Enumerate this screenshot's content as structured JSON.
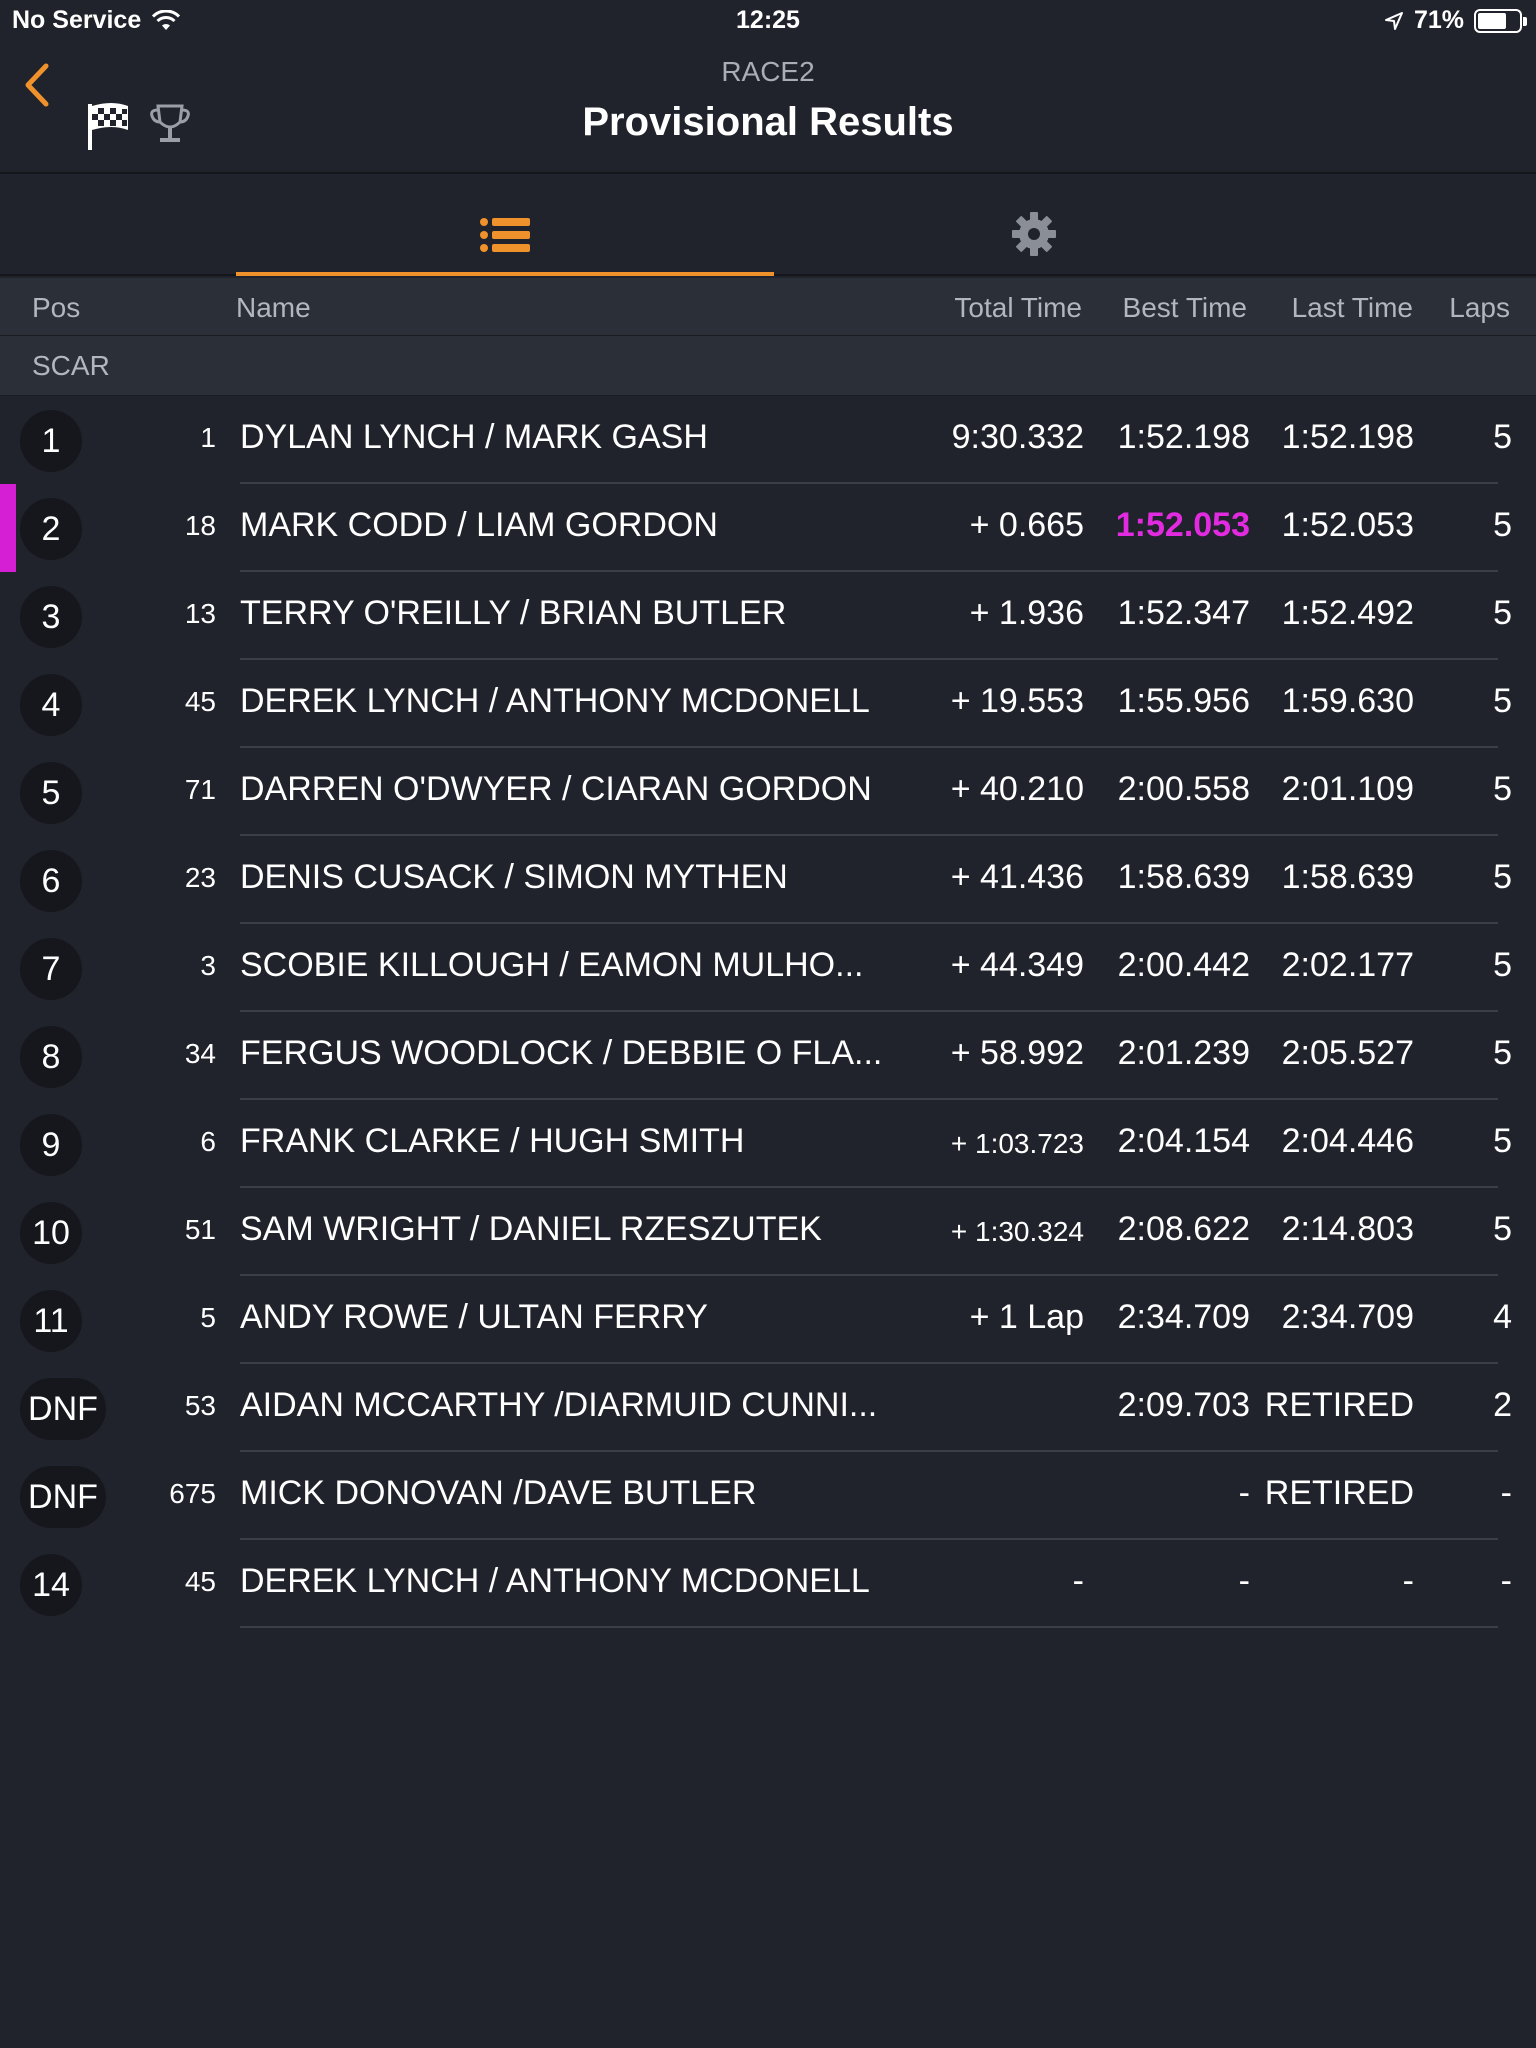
{
  "status_bar": {
    "carrier": "No Service",
    "time": "12:25",
    "battery": "71%",
    "battery_level": 0.71
  },
  "header": {
    "subtitle": "RACE2",
    "title": "Provisional Results"
  },
  "columns": {
    "pos": "Pos",
    "name": "Name",
    "total": "Total Time",
    "best": "Best Time",
    "last": "Last Time",
    "laps": "Laps"
  },
  "group": "SCAR",
  "colors": {
    "accent": "#f0922b",
    "fastest": "#e22be0",
    "background": "#20232b"
  },
  "results": [
    {
      "pos": "1",
      "num": "1",
      "name": "DYLAN LYNCH / MARK GASH",
      "total": "9:30.332",
      "best": "1:52.198",
      "last": "1:52.198",
      "laps": "5"
    },
    {
      "pos": "2",
      "num": "18",
      "name": "MARK CODD / LIAM GORDON",
      "total": "+ 0.665",
      "best": "1:52.053",
      "last": "1:52.053",
      "laps": "5"
    },
    {
      "pos": "3",
      "num": "13",
      "name": "TERRY O'REILLY / BRIAN BUTLER",
      "total": "+ 1.936",
      "best": "1:52.347",
      "last": "1:52.492",
      "laps": "5"
    },
    {
      "pos": "4",
      "num": "45",
      "name": "DEREK LYNCH / ANTHONY MCDONELL",
      "total": "+ 19.553",
      "best": "1:55.956",
      "last": "1:59.630",
      "laps": "5"
    },
    {
      "pos": "5",
      "num": "71",
      "name": "DARREN O'DWYER / CIARAN GORDON",
      "total": "+ 40.210",
      "best": "2:00.558",
      "last": "2:01.109",
      "laps": "5"
    },
    {
      "pos": "6",
      "num": "23",
      "name": "DENIS CUSACK / SIMON MYTHEN",
      "total": "+ 41.436",
      "best": "1:58.639",
      "last": "1:58.639",
      "laps": "5"
    },
    {
      "pos": "7",
      "num": "3",
      "name": "SCOBIE KILLOUGH / EAMON MULHO...",
      "total": "+ 44.349",
      "best": "2:00.442",
      "last": "2:02.177",
      "laps": "5"
    },
    {
      "pos": "8",
      "num": "34",
      "name": "FERGUS WOODLOCK / DEBBIE O FLA...",
      "total": "+ 58.992",
      "best": "2:01.239",
      "last": "2:05.527",
      "laps": "5"
    },
    {
      "pos": "9",
      "num": "6",
      "name": "FRANK CLARKE / HUGH SMITH",
      "total": "+ 1:03.723",
      "best": "2:04.154",
      "last": "2:04.446",
      "laps": "5"
    },
    {
      "pos": "10",
      "num": "51",
      "name": "SAM WRIGHT / DANIEL RZESZUTEK",
      "total": "+ 1:30.324",
      "best": "2:08.622",
      "last": "2:14.803",
      "laps": "5"
    },
    {
      "pos": "11",
      "num": "5",
      "name": "ANDY ROWE / ULTAN FERRY",
      "total": "+ 1 Lap",
      "best": "2:34.709",
      "last": "2:34.709",
      "laps": "4"
    },
    {
      "pos": "DNF",
      "num": "53",
      "name": "AIDAN MCCARTHY /DIARMUID CUNNI...",
      "total": "",
      "best": "2:09.703",
      "last": "RETIRED",
      "laps": "2"
    },
    {
      "pos": "DNF",
      "num": "675",
      "name": "MICK DONOVAN /DAVE BUTLER",
      "total": "",
      "best": "-",
      "last": "RETIRED",
      "laps": "-"
    },
    {
      "pos": "14",
      "num": "45",
      "name": "DEREK LYNCH / ANTHONY MCDONELL",
      "total": "-",
      "best": "-",
      "last": "-",
      "laps": "-"
    }
  ]
}
